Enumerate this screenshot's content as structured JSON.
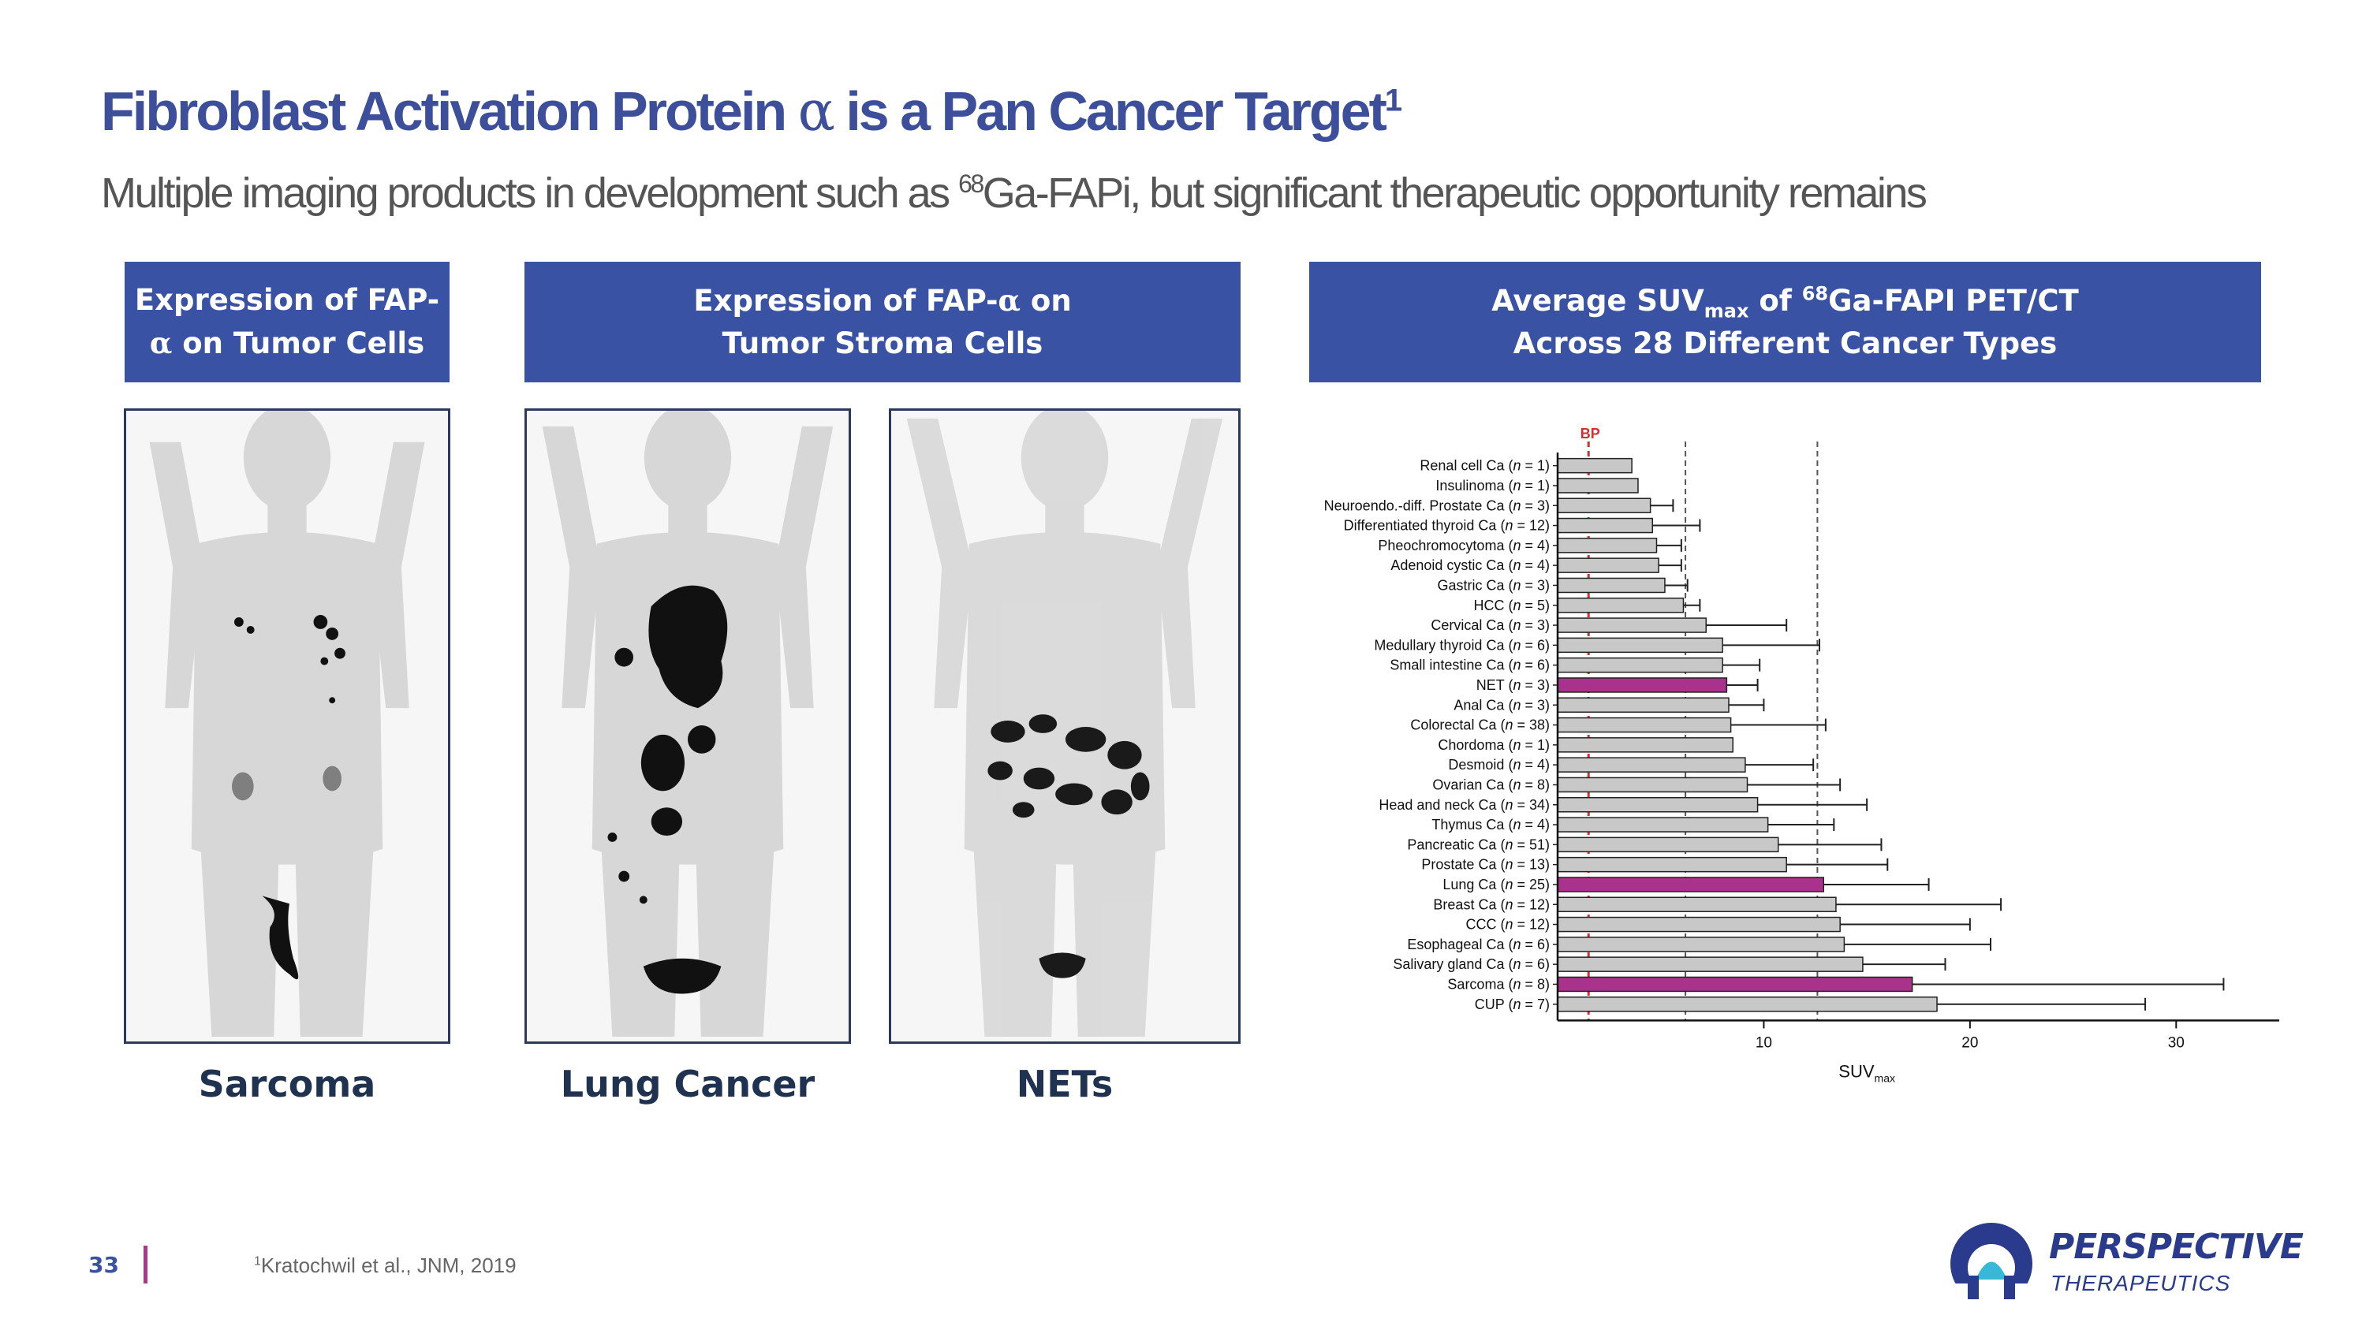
{
  "header": {
    "title_main": "Fibroblast Activation Protein ",
    "title_alpha": "α",
    "title_rest": " is a Pan Cancer Target",
    "title_sup": "1",
    "subtitle_pre": "Multiple imaging products in development such as ",
    "subtitle_sup": "68",
    "subtitle_post": "Ga-FAPi, but significant therapeutic opportunity remains"
  },
  "panels": {
    "tumor_cells": {
      "line1": "Expression of FAP-",
      "alpha": "α",
      "line2": " on Tumor Cells"
    },
    "stroma_cells": {
      "line1_pre": "Expression of FAP-",
      "alpha": "α",
      "line1_post": " on",
      "line2": "Tumor Stroma Cells"
    },
    "suv": {
      "line1_pre": "Average SUV",
      "line1_sub": "max",
      "line1_mid": " of ",
      "line1_sup": "68",
      "line1_post": "Ga-FAPI PET/CT",
      "line2": "Across 28 Different Cancer Types"
    }
  },
  "captions": {
    "sarcoma": "Sarcoma",
    "lung": "Lung Cancer",
    "nets": "NETs"
  },
  "chart_data": {
    "type": "bar",
    "orientation": "horizontal",
    "categories": [
      "Renal cell Ca (n = 1)",
      "Insulinoma (n = 1)",
      "Neuroendo.-diff. Prostate Ca (n = 3)",
      "Differentiated thyroid Ca (n = 12)",
      "Pheochromocytoma (n = 4)",
      "Adenoid cystic Ca (n = 4)",
      "Gastric Ca (n = 3)",
      "HCC (n = 5)",
      "Cervical Ca (n = 3)",
      "Medullary thyroid Ca (n = 6)",
      "Small intestine Ca (n = 6)",
      "NET (n = 3)",
      "Anal Ca (n = 3)",
      "Colorectal Ca (n = 38)",
      "Chordoma (n = 1)",
      "Desmoid (n = 4)",
      "Ovarian Ca (n = 8)",
      "Head and neck Ca (n = 34)",
      "Thymus Ca (n = 4)",
      "Pancreatic Ca (n = 51)",
      "Prostate Ca (n = 13)",
      "Lung Ca (n = 25)",
      "Breast Ca (n = 12)",
      "CCC (n = 12)",
      "Esophageal Ca (n = 6)",
      "Salivary gland Ca (n = 6)",
      "Sarcoma (n = 8)",
      "CUP (n = 7)"
    ],
    "values": [
      3.6,
      3.9,
      4.5,
      4.6,
      4.8,
      4.9,
      5.2,
      6.1,
      7.2,
      8.0,
      8.0,
      8.2,
      8.3,
      8.4,
      8.5,
      9.1,
      9.2,
      9.7,
      10.2,
      10.7,
      11.1,
      12.9,
      13.5,
      13.7,
      13.9,
      14.8,
      17.2,
      18.4
    ],
    "error_upper": [
      null,
      null,
      5.6,
      6.9,
      6.0,
      6.0,
      6.3,
      6.9,
      11.1,
      12.7,
      9.8,
      9.7,
      10.0,
      13.0,
      null,
      12.4,
      13.7,
      15.0,
      13.4,
      15.7,
      16.0,
      18.0,
      21.5,
      20.0,
      21.0,
      18.8,
      32.3,
      28.5
    ],
    "highlighted": [
      "NET (n = 3)",
      "Lung Ca (n = 25)",
      "Sarcoma (n = 8)"
    ],
    "reference_lines": [
      {
        "label": "BP",
        "value": 1.5,
        "color": "#d32f2f",
        "style": "dashed"
      },
      {
        "label": "",
        "value": 6.2,
        "color": "#555555",
        "style": "dashed"
      },
      {
        "label": "",
        "value": 12.6,
        "color": "#555555",
        "style": "dashed"
      }
    ],
    "xlim": [
      0,
      35
    ],
    "xticks": [
      10,
      20,
      30
    ],
    "xlabel_main": "SUV",
    "xlabel_sub": "max",
    "colors": {
      "bar": "#c8c8c8",
      "highlight": "#a8328c",
      "bar_edge": "#222222"
    }
  },
  "footer": {
    "page_number": "33",
    "ref_sup": "1",
    "ref_text": "Kratochwil et al., JNM, 2019",
    "logo_name": "PERSPECTIVE",
    "logo_sub": "THERAPEUTICS"
  }
}
